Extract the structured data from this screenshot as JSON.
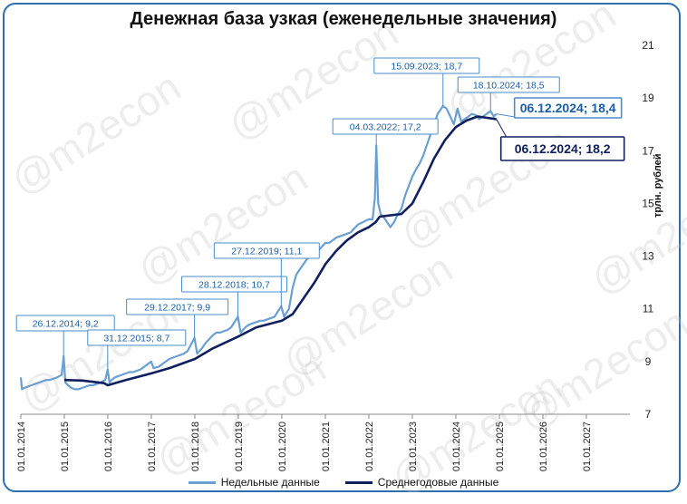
{
  "watermark": "@m2econ",
  "colors": {
    "weekly": "#6a9fd4",
    "average": "#10205e",
    "frame": "#2e6fb0",
    "annot_border": "#4a8bc9",
    "annot_text": "#1a5ea8"
  },
  "chart_data": {
    "type": "line",
    "title": "Денежная база узкая (еженедельные значения)",
    "ylabel": "трлн. рублей",
    "ylim": [
      7,
      21
    ],
    "yticks": [
      "7",
      "9",
      "11",
      "13",
      "15",
      "17",
      "19",
      "21"
    ],
    "xlim": [
      "2014-01-01",
      "2028-01-01"
    ],
    "xticks": [
      "01.01.2014",
      "01.01.2015",
      "01.01.2016",
      "01.01.2017",
      "01.01.2018",
      "01.01.2019",
      "01.01.2020",
      "01.01.2021",
      "01.01.2022",
      "01.01.2023",
      "01.01.2024",
      "01.01.2025",
      "01.01.2026",
      "01.01.2027"
    ],
    "grid": false,
    "legend_position": "bottom",
    "series": [
      {
        "name": "Недельные данные",
        "color": "#6a9fd4",
        "points": [
          [
            "2014-01-01",
            8.4
          ],
          [
            "2014-01-10",
            7.95
          ],
          [
            "2014-02-01",
            8.0
          ],
          [
            "2014-03-01",
            8.05
          ],
          [
            "2014-04-01",
            8.1
          ],
          [
            "2014-05-01",
            8.15
          ],
          [
            "2014-06-01",
            8.2
          ],
          [
            "2014-07-01",
            8.25
          ],
          [
            "2014-08-01",
            8.3
          ],
          [
            "2014-09-01",
            8.3
          ],
          [
            "2014-10-01",
            8.35
          ],
          [
            "2014-11-01",
            8.4
          ],
          [
            "2014-12-10",
            8.5
          ],
          [
            "2014-12-26",
            9.2
          ],
          [
            "2015-01-10",
            8.2
          ],
          [
            "2015-02-01",
            8.1
          ],
          [
            "2015-03-01",
            8.0
          ],
          [
            "2015-04-01",
            7.95
          ],
          [
            "2015-05-01",
            7.95
          ],
          [
            "2015-06-01",
            8.0
          ],
          [
            "2015-07-01",
            8.05
          ],
          [
            "2015-08-01",
            8.1
          ],
          [
            "2015-09-01",
            8.1
          ],
          [
            "2015-10-01",
            8.15
          ],
          [
            "2015-11-01",
            8.2
          ],
          [
            "2015-12-10",
            8.3
          ],
          [
            "2015-12-31",
            8.7
          ],
          [
            "2016-01-15",
            8.2
          ],
          [
            "2016-02-01",
            8.3
          ],
          [
            "2016-03-01",
            8.4
          ],
          [
            "2016-04-01",
            8.45
          ],
          [
            "2016-05-01",
            8.5
          ],
          [
            "2016-06-01",
            8.55
          ],
          [
            "2016-07-01",
            8.6
          ],
          [
            "2016-08-01",
            8.6
          ],
          [
            "2016-09-01",
            8.65
          ],
          [
            "2016-10-01",
            8.7
          ],
          [
            "2016-11-01",
            8.8
          ],
          [
            "2016-12-30",
            9.0
          ],
          [
            "2017-01-20",
            8.75
          ],
          [
            "2017-03-01",
            8.8
          ],
          [
            "2017-04-01",
            8.9
          ],
          [
            "2017-05-01",
            9.0
          ],
          [
            "2017-06-01",
            9.1
          ],
          [
            "2017-07-01",
            9.15
          ],
          [
            "2017-08-01",
            9.2
          ],
          [
            "2017-09-01",
            9.25
          ],
          [
            "2017-10-01",
            9.3
          ],
          [
            "2017-11-01",
            9.4
          ],
          [
            "2017-12-29",
            9.9
          ],
          [
            "2018-01-20",
            9.3
          ],
          [
            "2018-03-01",
            9.5
          ],
          [
            "2018-04-01",
            9.7
          ],
          [
            "2018-05-01",
            9.85
          ],
          [
            "2018-06-01",
            10.0
          ],
          [
            "2018-07-01",
            10.1
          ],
          [
            "2018-08-01",
            10.1
          ],
          [
            "2018-09-01",
            10.15
          ],
          [
            "2018-10-01",
            10.2
          ],
          [
            "2018-11-01",
            10.3
          ],
          [
            "2018-12-28",
            10.7
          ],
          [
            "2019-01-20",
            10.1
          ],
          [
            "2019-03-01",
            10.3
          ],
          [
            "2019-04-01",
            10.4
          ],
          [
            "2019-05-01",
            10.45
          ],
          [
            "2019-06-01",
            10.5
          ],
          [
            "2019-07-01",
            10.55
          ],
          [
            "2019-08-01",
            10.55
          ],
          [
            "2019-09-01",
            10.6
          ],
          [
            "2019-10-01",
            10.65
          ],
          [
            "2019-11-01",
            10.7
          ],
          [
            "2019-12-27",
            11.1
          ],
          [
            "2020-01-20",
            10.7
          ],
          [
            "2020-03-01",
            11.0
          ],
          [
            "2020-04-01",
            11.8
          ],
          [
            "2020-05-01",
            12.3
          ],
          [
            "2020-06-01",
            12.5
          ],
          [
            "2020-07-01",
            12.7
          ],
          [
            "2020-08-01",
            12.9
          ],
          [
            "2020-09-01",
            13.0
          ],
          [
            "2020-10-01",
            13.1
          ],
          [
            "2020-11-01",
            13.2
          ],
          [
            "2020-12-31",
            13.5
          ],
          [
            "2021-02-01",
            13.5
          ],
          [
            "2021-04-01",
            13.7
          ],
          [
            "2021-06-01",
            13.8
          ],
          [
            "2021-08-01",
            13.9
          ],
          [
            "2021-10-01",
            14.2
          ],
          [
            "2021-12-31",
            14.4
          ],
          [
            "2022-02-01",
            14.4
          ],
          [
            "2022-02-20",
            15.2
          ],
          [
            "2022-03-04",
            17.2
          ],
          [
            "2022-03-20",
            15.0
          ],
          [
            "2022-04-10",
            14.6
          ],
          [
            "2022-05-01",
            14.5
          ],
          [
            "2022-06-01",
            14.3
          ],
          [
            "2022-07-01",
            14.1
          ],
          [
            "2022-08-01",
            14.3
          ],
          [
            "2022-09-01",
            14.6
          ],
          [
            "2022-10-01",
            14.8
          ],
          [
            "2022-11-01",
            15.3
          ],
          [
            "2022-12-30",
            16.0
          ],
          [
            "2023-02-01",
            16.3
          ],
          [
            "2023-03-01",
            16.5
          ],
          [
            "2023-04-01",
            16.8
          ],
          [
            "2023-05-01",
            17.2
          ],
          [
            "2023-06-01",
            17.6
          ],
          [
            "2023-07-01",
            18.0
          ],
          [
            "2023-08-01",
            18.4
          ],
          [
            "2023-09-15",
            18.7
          ],
          [
            "2023-10-15",
            18.6
          ],
          [
            "2023-11-15",
            18.3
          ],
          [
            "2023-12-15",
            18.0
          ],
          [
            "2024-01-15",
            18.6
          ],
          [
            "2024-02-15",
            18.1
          ],
          [
            "2024-03-15",
            18.2
          ],
          [
            "2024-04-15",
            18.3
          ],
          [
            "2024-05-15",
            18.4
          ],
          [
            "2024-06-15",
            18.35
          ],
          [
            "2024-07-15",
            18.2
          ],
          [
            "2024-08-15",
            18.3
          ],
          [
            "2024-09-15",
            18.4
          ],
          [
            "2024-10-18",
            18.5
          ],
          [
            "2024-11-15",
            18.3
          ],
          [
            "2024-12-06",
            18.4
          ]
        ]
      },
      {
        "name": "Среднегодовые данные",
        "color": "#10205e",
        "points": [
          [
            "2015-01-01",
            8.3
          ],
          [
            "2015-06-01",
            8.28
          ],
          [
            "2015-12-01",
            8.18
          ],
          [
            "2016-01-01",
            8.1
          ],
          [
            "2016-06-01",
            8.3
          ],
          [
            "2017-01-01",
            8.55
          ],
          [
            "2017-06-01",
            8.75
          ],
          [
            "2018-01-01",
            9.1
          ],
          [
            "2018-06-01",
            9.5
          ],
          [
            "2019-01-01",
            9.95
          ],
          [
            "2019-06-01",
            10.3
          ],
          [
            "2020-01-01",
            10.55
          ],
          [
            "2020-04-01",
            10.8
          ],
          [
            "2020-07-01",
            11.4
          ],
          [
            "2020-10-01",
            12.0
          ],
          [
            "2021-01-01",
            12.7
          ],
          [
            "2021-04-01",
            13.2
          ],
          [
            "2021-07-01",
            13.6
          ],
          [
            "2021-10-01",
            13.9
          ],
          [
            "2022-01-01",
            14.1
          ],
          [
            "2022-03-01",
            14.3
          ],
          [
            "2022-04-01",
            14.5
          ],
          [
            "2022-10-01",
            14.6
          ],
          [
            "2023-01-01",
            15.0
          ],
          [
            "2023-04-01",
            15.8
          ],
          [
            "2023-07-01",
            16.7
          ],
          [
            "2023-10-01",
            17.4
          ],
          [
            "2024-01-01",
            17.9
          ],
          [
            "2024-04-01",
            18.15
          ],
          [
            "2024-07-01",
            18.3
          ],
          [
            "2024-12-06",
            18.2
          ]
        ]
      }
    ],
    "annotations": [
      {
        "text": "26.12.2014;  9,2",
        "date": "2014-12-26",
        "value": 9.2,
        "style": "small"
      },
      {
        "text": "31.12.2015;  8,7",
        "date": "2015-12-31",
        "value": 8.7,
        "style": "small"
      },
      {
        "text": "29.12.2017;  9,9",
        "date": "2017-12-29",
        "value": 9.9,
        "style": "small"
      },
      {
        "text": "28.12.2018;  10,7",
        "date": "2018-12-28",
        "value": 10.7,
        "style": "small"
      },
      {
        "text": "27.12.2019;  11,1",
        "date": "2019-12-27",
        "value": 11.1,
        "style": "small"
      },
      {
        "text": "04.03.2022;  17,2",
        "date": "2022-03-04",
        "value": 17.2,
        "style": "small"
      },
      {
        "text": "15.09.2023;  18,7",
        "date": "2023-09-15",
        "value": 18.7,
        "style": "small"
      },
      {
        "text": "18.10.2024;  18,5",
        "date": "2024-10-18",
        "value": 18.5,
        "style": "small"
      },
      {
        "text": "06.12.2024;  18,4",
        "date": "2024-12-06",
        "value": 18.4,
        "style": "big-weekly"
      },
      {
        "text": "06.12.2024;  18,2",
        "date": "2024-12-06",
        "value": 18.2,
        "style": "big-average"
      }
    ]
  }
}
